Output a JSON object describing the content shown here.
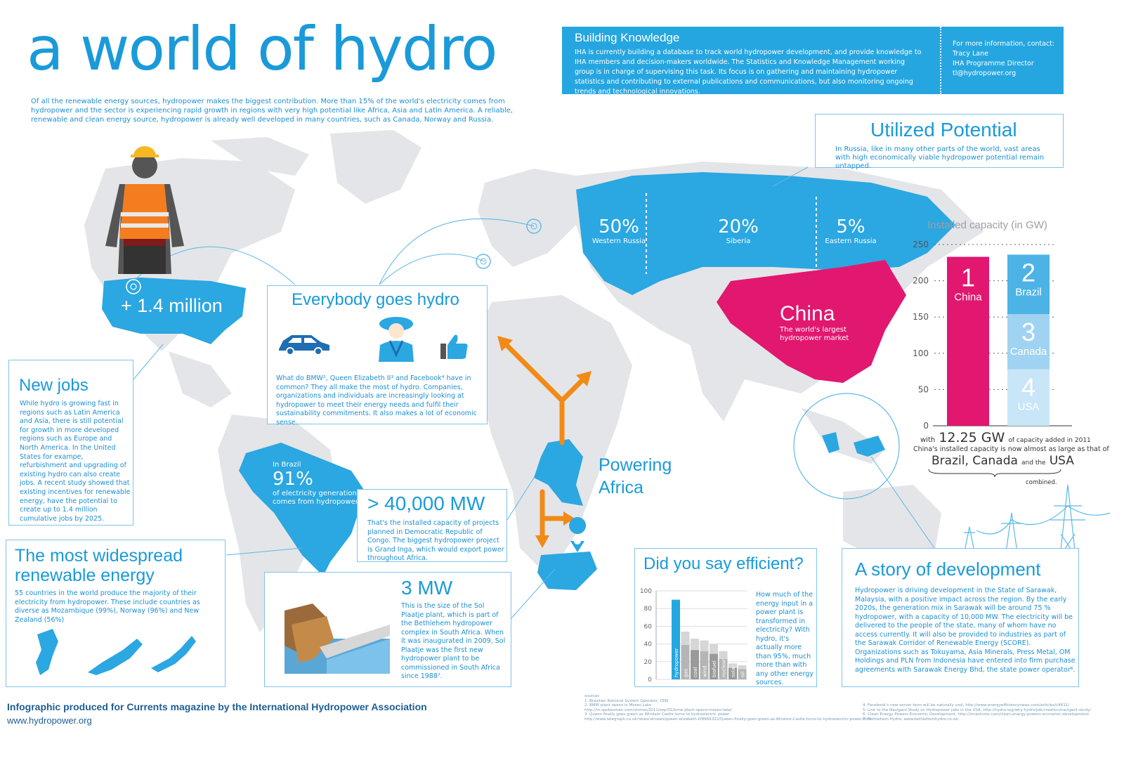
{
  "title": "a world of hydro",
  "intro": "Of all the renewable energy sources, hydropower makes the biggest contribution. More than 15% of the world's electricity comes from hydropower and the sector is experiencing rapid growth in regions with very high potential like Africa, Asia and Latin America. A reliable, renewable and clean energy source, hydropower is already well developed in many countries, such as Canada, Norway and Russia.",
  "building_knowledge": {
    "heading": "Building Knowledge",
    "body": "IHA is currently building a database to track world hydropower development, and provide knowledge to IHA members and decision-makers worldwide. The Statistics and Knowledge Management working group is in charge of supervising this task. Its focus is on gathering and maintaining hydropower statistics and contributing to external publications and communications, but also monitoring ongoing trends and technological innovations.",
    "contact_label": "For more information, contact:",
    "contact_name": "Tracy Lane",
    "contact_role": "IHA Programme Director",
    "contact_email": "tl@hydropower.org"
  },
  "utilized_potential": {
    "heading": "Utilized Potential",
    "body": "In Russia, like in many other parts of the world, vast areas with high economically viable hydropower potential remain untapped."
  },
  "russia": [
    {
      "value": "50%",
      "label": "Western Russia"
    },
    {
      "value": "20%",
      "label": "Siberia"
    },
    {
      "value": "5%",
      "label": "Eastern Russia"
    }
  ],
  "china": {
    "name": "China",
    "subtitle_1": "The world's largest",
    "subtitle_2": "hydropower market"
  },
  "usa_jobs": "+ 1.4 million",
  "new_jobs": {
    "heading": "New jobs",
    "body": "While hydro is growing fast in regions such as Latin America and Asia, there is still potential for growth in more developed regions such as Europe and North America. In the United States for exampe, refurbishment and upgrading of existing hydro can also create jobs. A recent study showed that existing incentives for renewable energy, have the potential to create up to 1.4 million cumulative jobs by 2025."
  },
  "everybody": {
    "heading": "Everybody goes hydro",
    "body": "What do BMW², Queen Elizabeth II³ and Facebook⁴ have in common? They all make the most of hydro. Companies, organizations and individuals are increasingly looking at hydropower to meet their energy needs and fulfil their sustainability commitments. It also makes a lot of economic sense."
  },
  "brazil": {
    "prefix": "In Brazil",
    "value": "91%",
    "line1": "of electricity generation",
    "line2": "comes from hydropower"
  },
  "widespread": {
    "heading_1": "The most widespread",
    "heading_2": "renewable energy",
    "body": "55 countries in the world produce the majority of their electricity from hydropower. These include countries as diverse as Mozambique (99%), Norway (96%) and New Zealand (56%)"
  },
  "mw40": {
    "heading": "> 40,000 MW",
    "body": "That's the installed capacity of projects planned in Democratic Republic of Congo. The biggest hydropower project is Grand Inga, which would export power throughout Africa."
  },
  "mw3": {
    "heading": "3 MW",
    "body": "This is the size of the Sol Plaatje plant, which is part of the Bethlehem hydropower complex in South Africa. When it was inaugurated in 2009, Sol Plaatje was the first new hydropower plant to be commissioned in South Africa since 1988⁷."
  },
  "powering_africa_1": "Powering",
  "powering_africa_2": "Africa",
  "efficient": {
    "heading": "Did you say efficient?",
    "body": "How much of the energy input in a power plant is transformed in electricity? With hydro, it's actually more than 95%, much more than with any other energy sources."
  },
  "story": {
    "heading": "A story of development",
    "body": "Hydropower is driving development in the State of Sarawak, Malaysia, with a positive impact across the region. By the early 2020s, the generation mix in Sarawak will be around 75 % hydropower, with a capacity of 10,000 MW. The electricity will be delivered to the people of the state, many of whom have no access currently. It will also be provided to industries as part of the Sarawak Corridor of Renewable Energy (SCORE). Organizations such as Tokuyama, Asia Minerals, Press Metal, OM Holdings and PLN from Indonesia have entered into firm purchase agreements with Sarawak Energy Bhd, the state power operator⁶."
  },
  "capacity_note": {
    "with": "with",
    "gw": "12.25 GW",
    "added": "of capacity added in 2011",
    "line2": "China's installed capacity is now almost as large as that of",
    "countries": "Brazil, Canada",
    "and_the": "and the",
    "usa": "USA",
    "combined": "combined."
  },
  "footer": {
    "line1": "Infographic produced for Currents magazine by the International Hydropower Association",
    "line2": "www.hydropower.org"
  },
  "sources": {
    "heading": "sources",
    "left": [
      "1. Brazilian National System Operator, ONS",
      "2. BMW plant opens in Moses Lake",
      "http://m.spokesman.com/stories/2011/sep/01/bmw-plant-opens-moses-lake/",
      "3. Queen finally goes green as Windsor Castle turns to hydroelectric power",
      "http://www.telegraph.co.uk/news/uknews/queen-elizabeth-II/8966322/Queen-finally-goes-green-as-Windsor-Castle-turns-to-hydroelectric-power.html"
    ],
    "right": [
      "4. Facebook's new server farm will be naturally cool, http://www.energyefficiencynews.com/articles/i/4611/",
      "5. Link to the Navigant Study on Hydropower jobs in the USA, http://hydro.org/why-hydro/job-creation/navigant-study/",
      "6. Clean Energy Powers Economic Development, http://investvine.com/clean-energy-powers-economic-development/",
      "7. Bethlehem Hydro, www.bethlehemhydro.co.za/"
    ]
  },
  "chart_data": [
    {
      "type": "bar",
      "title": "Installed capacity (in GW)",
      "yticks": [
        "0",
        "50",
        "100",
        "150",
        "200",
        "250"
      ],
      "ylim": [
        0,
        250
      ],
      "bars": [
        {
          "rank": "1",
          "name": "China",
          "value": 233,
          "color": "#e2176f"
        },
        {
          "rank": "2",
          "name": "Brazil",
          "value": 82,
          "color": "#4db3e6"
        },
        {
          "rank": "3",
          "name": "Canada",
          "value": 76,
          "color": "#9fd3f1"
        },
        {
          "rank": "4",
          "name": "USA",
          "value": 78,
          "color": "#c8e6f8"
        }
      ]
    },
    {
      "type": "bar",
      "yticks": [
        "0",
        "20",
        "40",
        "60",
        "80",
        "100"
      ],
      "ylim": [
        0,
        100
      ],
      "categories": [
        "hydropower",
        "gas",
        "coal",
        "wind",
        "biofuel",
        "nuclear",
        "solar",
        "oil"
      ],
      "values": [
        90,
        54,
        46,
        44,
        40,
        32,
        18,
        16
      ]
    }
  ]
}
